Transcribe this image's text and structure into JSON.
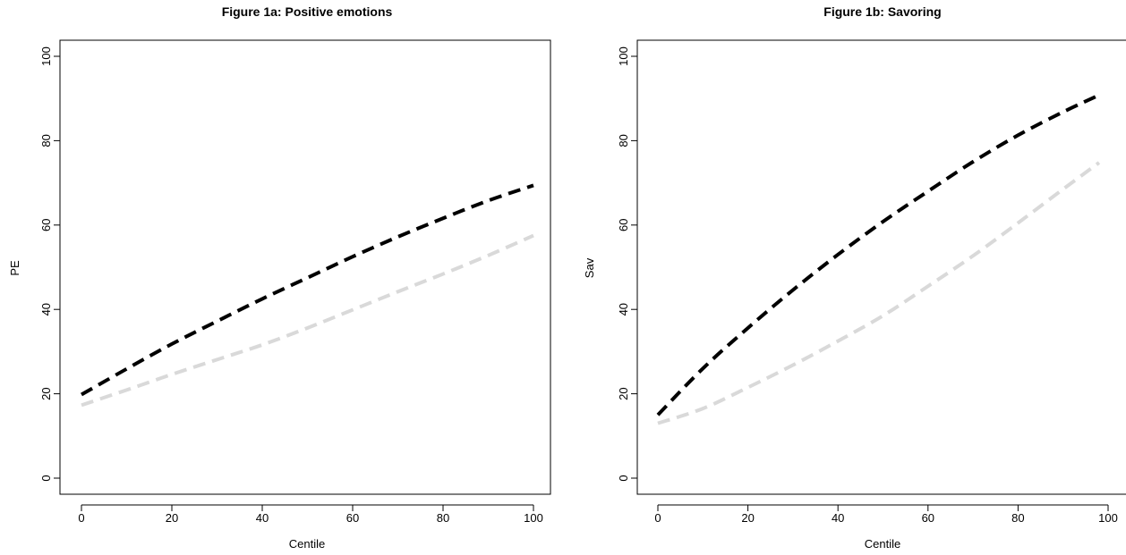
{
  "chart_data": [
    {
      "type": "line",
      "title": "Figure 1a: Positive emotions",
      "xlabel": "Centile",
      "ylabel": "PE",
      "xlim": [
        0,
        100
      ],
      "ylim": [
        0,
        100
      ],
      "x_ticks": [
        0,
        20,
        40,
        60,
        80,
        100
      ],
      "y_ticks": [
        0,
        20,
        40,
        60,
        80,
        100
      ],
      "grid": false,
      "x": [
        0,
        10,
        20,
        30,
        40,
        50,
        60,
        70,
        80,
        90,
        100
      ],
      "series": [
        {
          "color": "#000000",
          "style": "dashed",
          "values": [
            19.8,
            25.9,
            31.8,
            37.2,
            42.5,
            47.5,
            52.5,
            57.2,
            61.6,
            65.8,
            69.4
          ]
        },
        {
          "color": "#d9d9d9",
          "style": "dashed",
          "values": [
            17.3,
            20.9,
            24.6,
            28.1,
            31.6,
            35.6,
            39.9,
            44.2,
            48.4,
            52.8,
            57.5
          ]
        }
      ]
    },
    {
      "type": "line",
      "title": "Figure 1b: Savoring",
      "xlabel": "Centile",
      "ylabel": "Sav",
      "xlim": [
        0,
        100
      ],
      "ylim": [
        0,
        100
      ],
      "x_ticks": [
        0,
        20,
        40,
        60,
        80,
        100
      ],
      "y_ticks": [
        0,
        20,
        40,
        60,
        80,
        100
      ],
      "grid": false,
      "x": [
        0,
        10,
        20,
        30,
        40,
        50,
        60,
        70,
        80,
        90,
        98
      ],
      "series": [
        {
          "color": "#000000",
          "style": "dashed",
          "values": [
            15.0,
            26.0,
            35.6,
            44.6,
            53.0,
            60.8,
            68.0,
            75.0,
            81.3,
            86.8,
            90.8
          ]
        },
        {
          "color": "#d9d9d9",
          "style": "dashed",
          "values": [
            13.0,
            16.5,
            21.5,
            26.8,
            32.5,
            38.5,
            45.5,
            52.7,
            60.5,
            68.5,
            74.8
          ]
        }
      ]
    }
  ]
}
